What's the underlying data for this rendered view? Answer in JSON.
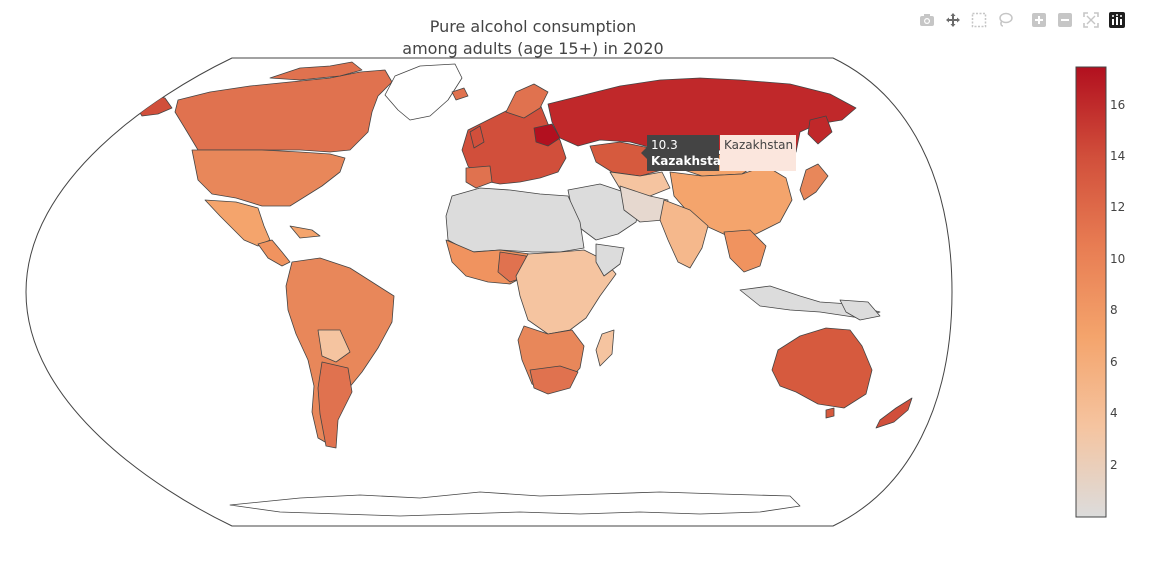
{
  "chart": {
    "title_line1": "Pure alcohol consumption",
    "title_line2": "among adults (age 15+) in 2020"
  },
  "modebar": {
    "buttons": [
      {
        "name": "camera-icon",
        "tip": "Download plot as a png"
      },
      {
        "name": "pan-icon",
        "tip": "Pan"
      },
      {
        "name": "box-select-icon",
        "tip": "Box Select"
      },
      {
        "name": "lasso-select-icon",
        "tip": "Lasso Select"
      },
      {
        "name": "zoom-in-icon",
        "tip": "Zoom in"
      },
      {
        "name": "zoom-out-icon",
        "tip": "Zoom out"
      },
      {
        "name": "reset-view-icon",
        "tip": "Reset"
      },
      {
        "name": "plotly-logo-icon",
        "tip": "Produced with Plotly"
      }
    ]
  },
  "colorbar": {
    "min": 0,
    "max": 17.5,
    "ticks": [
      "2",
      "4",
      "6",
      "8",
      "10",
      "12",
      "14",
      "16"
    ],
    "colors": [
      "#dcdcdc",
      "#f5c4a0",
      "#f4a46c",
      "#e87d53",
      "#d14f3b",
      "#b2101f"
    ]
  },
  "tooltip": {
    "value": "10.3",
    "country": "Kazakhstan",
    "side_label": "Kazakhstan"
  },
  "map_data": {
    "projection": "robinson",
    "highlighted": "Kazakhstan",
    "regions": [
      {
        "name": "Russia",
        "value": 15.5
      },
      {
        "name": "Kazakhstan",
        "value": 10.3
      },
      {
        "name": "China",
        "value": 6.5
      },
      {
        "name": "Canada",
        "value": 10.0
      },
      {
        "name": "United States",
        "value": 9.8
      },
      {
        "name": "Greenland",
        "value": 0
      },
      {
        "name": "Mexico",
        "value": 5.5
      },
      {
        "name": "Brazil",
        "value": 8.0
      },
      {
        "name": "Argentina",
        "value": 9.5
      },
      {
        "name": "Australia",
        "value": 12.0
      },
      {
        "name": "India",
        "value": 5.0
      },
      {
        "name": "South Africa",
        "value": 10.5
      },
      {
        "name": "Europe",
        "value": 12.5
      },
      {
        "name": "North Africa",
        "value": 1.0
      },
      {
        "name": "Middle East",
        "value": 1.5
      },
      {
        "name": "Antarctica",
        "value": 0
      }
    ]
  }
}
